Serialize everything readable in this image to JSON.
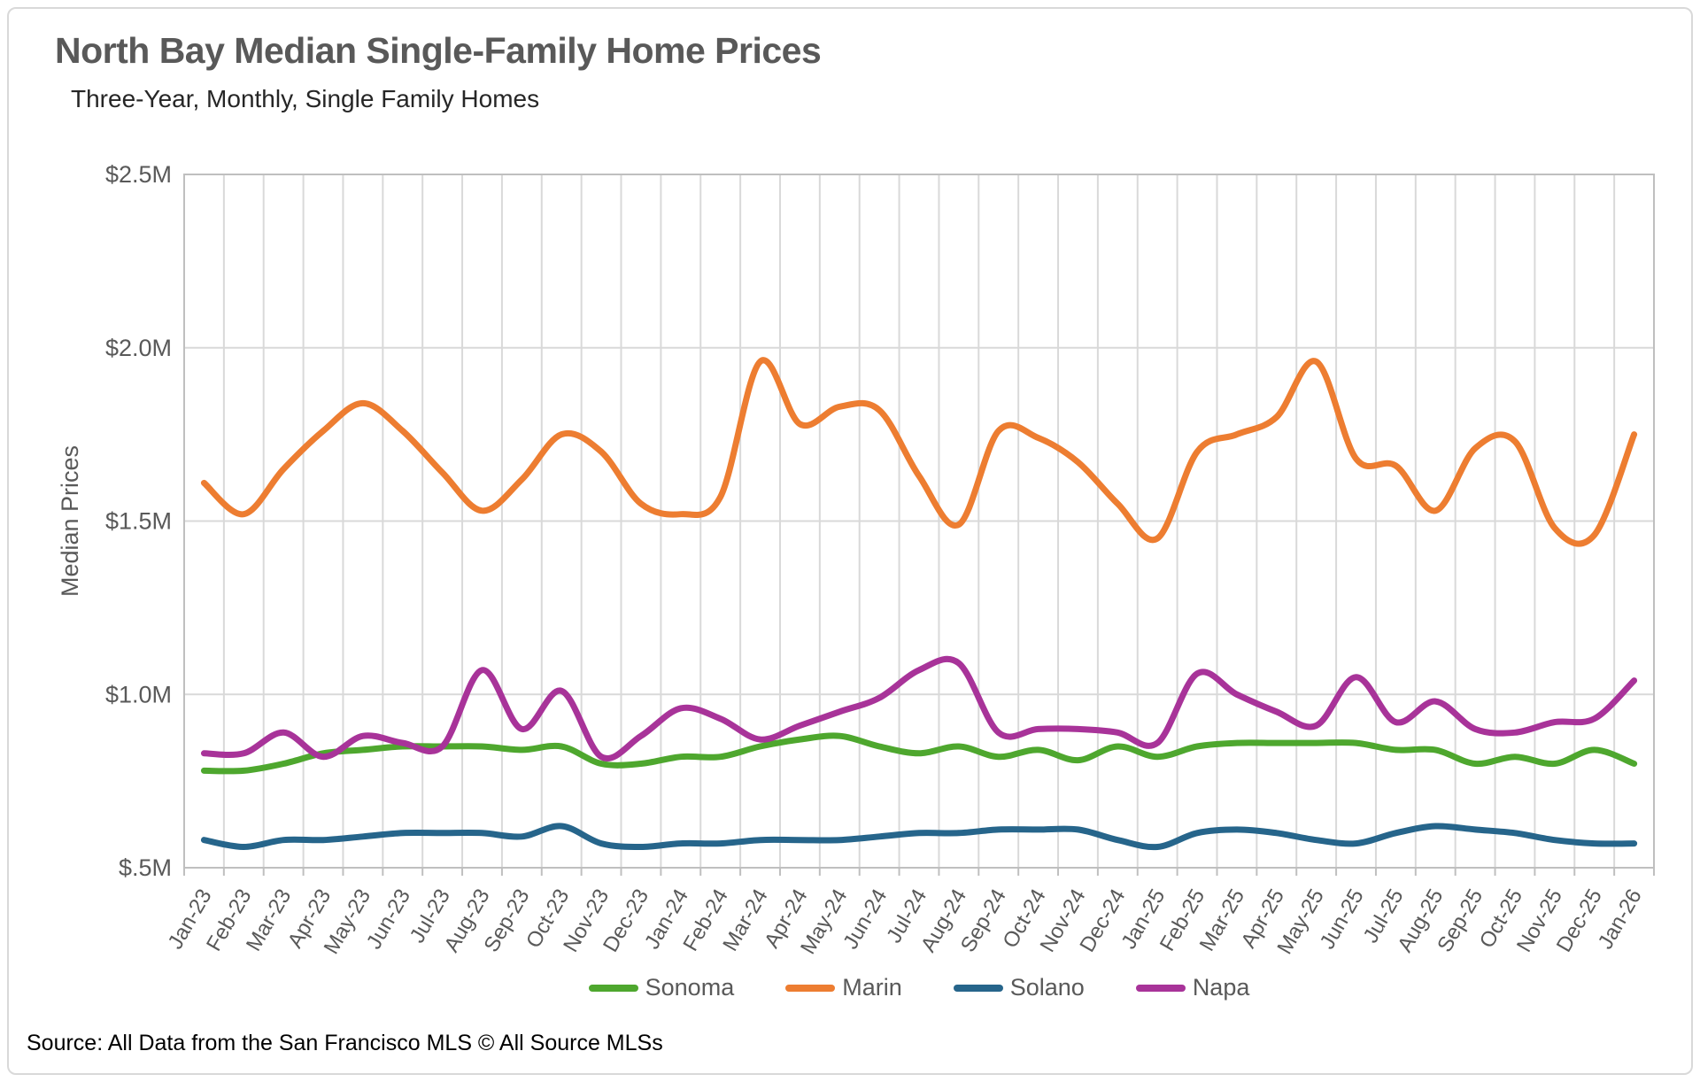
{
  "header": {
    "title": "North Bay Median Single-Family Home Prices",
    "subtitle": "Three-Year, Monthly, Single Family Homes"
  },
  "footer": {
    "source": "Source: All Data from the San Francisco MLS © All Source MLSs"
  },
  "colors": {
    "gridline": "#d9d9d9",
    "axis": "#bfbfbf",
    "tick_label": "#595959",
    "title": "#595959",
    "subtitle": "#262626",
    "card_border": "#d9d9d9"
  },
  "chart_data": {
    "type": "line",
    "title": "North Bay Median Single-Family Home Prices",
    "subtitle": "Three-Year, Monthly, Single Family Homes",
    "xlabel": "",
    "ylabel": "Median Prices",
    "ylim": [
      0.5,
      2.5
    ],
    "grid": true,
    "legend_position": "bottom",
    "y_ticks": [
      {
        "value": 2.5,
        "label": "$2.5M"
      },
      {
        "value": 2.0,
        "label": "$2.0M"
      },
      {
        "value": 1.5,
        "label": "$1.5M"
      },
      {
        "value": 1.0,
        "label": "$1.0M"
      },
      {
        "value": 0.5,
        "label": "$.5M"
      }
    ],
    "x": [
      "Jan-23",
      "Feb-23",
      "Mar-23",
      "Apr-23",
      "May-23",
      "Jun-23",
      "Jul-23",
      "Aug-23",
      "Sep-23",
      "Oct-23",
      "Nov-23",
      "Dec-23",
      "Jan-24",
      "Feb-24",
      "Mar-24",
      "Apr-24",
      "May-24",
      "Jun-24",
      "Jul-24",
      "Aug-24",
      "Sep-24",
      "Oct-24",
      "Nov-24",
      "Dec-24",
      "Jan-25",
      "Feb-25",
      "Mar-25",
      "Apr-25",
      "May-25",
      "Jun-25",
      "Jul-25",
      "Aug-25",
      "Sep-25",
      "Oct-25",
      "Nov-25",
      "Dec-25",
      "Jan-26"
    ],
    "units": "millions USD",
    "series": [
      {
        "name": "Sonoma",
        "color": "#4EA72E",
        "values": [
          0.78,
          0.78,
          0.8,
          0.83,
          0.84,
          0.85,
          0.85,
          0.85,
          0.84,
          0.85,
          0.8,
          0.8,
          0.82,
          0.82,
          0.85,
          0.87,
          0.88,
          0.85,
          0.83,
          0.85,
          0.82,
          0.84,
          0.81,
          0.85,
          0.82,
          0.85,
          0.86,
          0.86,
          0.86,
          0.86,
          0.84,
          0.84,
          0.8,
          0.82,
          0.8,
          0.84,
          0.8
        ]
      },
      {
        "name": "Marin",
        "color": "#ED7D31",
        "values": [
          1.61,
          1.52,
          1.65,
          1.76,
          1.84,
          1.76,
          1.64,
          1.53,
          1.62,
          1.75,
          1.7,
          1.55,
          1.52,
          1.57,
          1.96,
          1.78,
          1.83,
          1.82,
          1.63,
          1.49,
          1.76,
          1.74,
          1.67,
          1.55,
          1.45,
          1.7,
          1.75,
          1.8,
          1.96,
          1.68,
          1.66,
          1.53,
          1.71,
          1.73,
          1.48,
          1.46,
          1.75
        ]
      },
      {
        "name": "Solano",
        "color": "#26658B",
        "values": [
          0.58,
          0.56,
          0.58,
          0.58,
          0.59,
          0.6,
          0.6,
          0.6,
          0.59,
          0.62,
          0.57,
          0.56,
          0.57,
          0.57,
          0.58,
          0.58,
          0.58,
          0.59,
          0.6,
          0.6,
          0.61,
          0.61,
          0.61,
          0.58,
          0.56,
          0.6,
          0.61,
          0.6,
          0.58,
          0.57,
          0.6,
          0.62,
          0.61,
          0.6,
          0.58,
          0.57,
          0.57
        ]
      },
      {
        "name": "Napa",
        "color": "#A83399",
        "values": [
          0.83,
          0.83,
          0.89,
          0.82,
          0.88,
          0.86,
          0.85,
          1.07,
          0.9,
          1.01,
          0.82,
          0.88,
          0.96,
          0.93,
          0.87,
          0.91,
          0.95,
          0.99,
          1.07,
          1.09,
          0.89,
          0.9,
          0.9,
          0.89,
          0.86,
          1.06,
          1.0,
          0.95,
          0.91,
          1.05,
          0.92,
          0.98,
          0.9,
          0.89,
          0.92,
          0.93,
          1.04
        ]
      }
    ]
  }
}
